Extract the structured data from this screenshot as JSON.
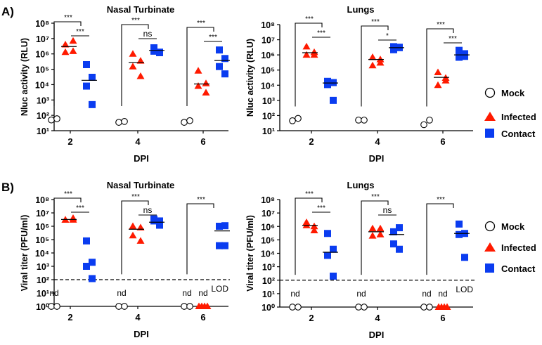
{
  "panel_labels": [
    "A)",
    "B)"
  ],
  "legend": [
    {
      "name": "Mock",
      "marker": "circle-open",
      "color": "#000000"
    },
    {
      "name": "Infected",
      "marker": "triangle",
      "color": "#ff0000"
    },
    {
      "name": "Contact",
      "marker": "square",
      "color": "#0033ff"
    }
  ],
  "chart_data": [
    {
      "type": "scatter",
      "title": "Nasal Turbinate",
      "xlabel": "DPI",
      "ylabel": "Nluc activity (RLU)",
      "yscale": "log",
      "ylim": [
        10,
        100000000
      ],
      "ytick_labels": [
        "10¹",
        "10²",
        "10³",
        "10⁴",
        "10⁵",
        "10⁶",
        "10⁷",
        "10⁸"
      ],
      "categories": [
        "2",
        "4",
        "6"
      ],
      "series": [
        {
          "name": "Mock",
          "values": [
            [
              50,
              60
            ],
            [
              35,
              40
            ],
            [
              35,
              45
            ]
          ],
          "means": [
            null,
            null,
            null
          ]
        },
        {
          "name": "Infected",
          "values": [
            [
              4000000,
              7000000,
              1300000,
              1500000
            ],
            [
              1000000,
              350000,
              150000,
              35000
            ],
            [
              80000,
              12000,
              8000,
              3000
            ]
          ],
          "means": [
            3000000,
            280000,
            11000
          ]
        },
        {
          "name": "Contact",
          "values": [
            [
              200000,
              30000,
              8000,
              500
            ],
            [
              2500000,
              1200000,
              1500000,
              1300000
            ],
            [
              1800000,
              500000,
              150000,
              50000
            ]
          ],
          "means": [
            19000,
            1700000,
            370000
          ]
        }
      ],
      "comparisons": [
        {
          "day": "2",
          "pair": [
            "Mock",
            "Contact"
          ],
          "label": "***"
        },
        {
          "day": "2",
          "pair": [
            "Infected",
            "Contact"
          ],
          "label": "***"
        },
        {
          "day": "4",
          "pair": [
            "Mock",
            "Contact"
          ],
          "label": "***"
        },
        {
          "day": "4",
          "pair": [
            "Infected",
            "Contact"
          ],
          "label": "ns"
        },
        {
          "day": "6",
          "pair": [
            "Mock",
            "Contact"
          ],
          "label": "***"
        },
        {
          "day": "6",
          "pair": [
            "Infected",
            "Contact"
          ],
          "label": "***"
        }
      ]
    },
    {
      "type": "scatter",
      "title": "Lungs",
      "xlabel": "DPI",
      "ylabel": "Nluc activity (RLU)",
      "yscale": "log",
      "ylim": [
        10,
        100000000
      ],
      "ytick_labels": [
        "10¹",
        "10²",
        "10³",
        "10⁴",
        "10⁵",
        "10⁶",
        "10⁷",
        "10⁸"
      ],
      "categories": [
        "2",
        "4",
        "6"
      ],
      "series": [
        {
          "name": "Mock",
          "values": [
            [
              45,
              65
            ],
            [
              50,
              50
            ],
            [
              25,
              50
            ]
          ],
          "means": [
            null,
            null,
            null
          ]
        },
        {
          "name": "Infected",
          "values": [
            [
              3500000,
              1500000,
              1000000,
              1000000
            ],
            [
              700000,
              500000,
              200000,
              300000
            ],
            [
              70000,
              30000,
              10000,
              20000
            ]
          ],
          "means": [
            1400000,
            500000,
            33000
          ]
        },
        {
          "name": "Contact",
          "values": [
            [
              18000,
              15000,
              11000,
              1000
            ],
            [
              2200000,
              3000000,
              3500000,
              3200000
            ],
            [
              2000000,
              1200000,
              700000,
              800000
            ]
          ],
          "means": [
            14000,
            3000000,
            1000000
          ]
        }
      ],
      "comparisons": [
        {
          "day": "2",
          "pair": [
            "Mock",
            "Contact"
          ],
          "label": "***"
        },
        {
          "day": "2",
          "pair": [
            "Infected",
            "Contact"
          ],
          "label": "***"
        },
        {
          "day": "4",
          "pair": [
            "Mock",
            "Contact"
          ],
          "label": "***"
        },
        {
          "day": "4",
          "pair": [
            "Infected",
            "Contact"
          ],
          "label": "*"
        },
        {
          "day": "6",
          "pair": [
            "Mock",
            "Contact"
          ],
          "label": "***"
        },
        {
          "day": "6",
          "pair": [
            "Infected",
            "Contact"
          ],
          "label": "***"
        }
      ]
    },
    {
      "type": "scatter",
      "title": "Nasal Turbinate",
      "xlabel": "DPI",
      "ylabel": "Viral titer (PFU/ml)",
      "yscale": "log",
      "ylim": [
        1,
        100000000
      ],
      "ytick_labels": [
        "10⁰",
        "10¹",
        "10²",
        "10³",
        "10⁴",
        "10⁵",
        "10⁶",
        "10⁷",
        "10⁸"
      ],
      "categories": [
        "2",
        "4",
        "6"
      ],
      "lod": {
        "value": 100,
        "label": "LOD"
      },
      "nd_label": "nd",
      "nd": [
        {
          "day": "2",
          "series": "Mock"
        },
        {
          "day": "4",
          "series": "Mock"
        },
        {
          "day": "6",
          "series": "Mock"
        },
        {
          "day": "6",
          "series": "Infected"
        }
      ],
      "series": [
        {
          "name": "Mock",
          "values": [
            [
              1,
              1
            ],
            [
              1,
              1
            ],
            [
              1,
              1
            ]
          ],
          "means": [
            null,
            null,
            null
          ]
        },
        {
          "name": "Infected",
          "values": [
            [
              3000000,
              4000000,
              3000000,
              3000000
            ],
            [
              1000000,
              800000,
              200000,
              80000
            ],
            [
              1,
              1,
              1,
              1
            ]
          ],
          "means": [
            3200000,
            600000,
            null
          ]
        },
        {
          "name": "Contact",
          "values": [
            [
              80000,
              2000,
              1000,
              120
            ],
            [
              3500000,
              1200000,
              2500000,
              2500000
            ],
            [
              1000000,
              1100000,
              35000,
              35000
            ]
          ],
          "means": [
            null,
            2000000,
            450000
          ]
        }
      ],
      "comparisons": [
        {
          "day": "2",
          "pair": [
            "Mock",
            "Contact"
          ],
          "label": "***"
        },
        {
          "day": "2",
          "pair": [
            "Infected",
            "Contact"
          ],
          "label": "***"
        },
        {
          "day": "4",
          "pair": [
            "Mock",
            "Contact"
          ],
          "label": "***"
        },
        {
          "day": "4",
          "pair": [
            "Infected",
            "Contact"
          ],
          "label": "ns"
        },
        {
          "day": "6",
          "pair": [
            "Mock",
            "Contact"
          ],
          "label": "***"
        }
      ]
    },
    {
      "type": "scatter",
      "title": "Lungs",
      "xlabel": "DPI",
      "ylabel": "Viral titer (PFU/ml)",
      "yscale": "log",
      "ylim": [
        1,
        100000000
      ],
      "ytick_labels": [
        "10⁰",
        "10¹",
        "10²",
        "10³",
        "10⁴",
        "10⁵",
        "10⁶",
        "10⁷",
        "10⁸"
      ],
      "categories": [
        "2",
        "4",
        "6"
      ],
      "lod": {
        "value": 100,
        "label": "LOD"
      },
      "nd_label": "nd",
      "nd": [
        {
          "day": "2",
          "series": "Mock"
        },
        {
          "day": "4",
          "series": "Mock"
        },
        {
          "day": "6",
          "series": "Mock"
        },
        {
          "day": "6",
          "series": "Infected"
        }
      ],
      "series": [
        {
          "name": "Mock",
          "values": [
            [
              1,
              1
            ],
            [
              1,
              1
            ],
            [
              1,
              1
            ]
          ],
          "means": [
            null,
            null,
            null
          ]
        },
        {
          "name": "Infected",
          "values": [
            [
              2000000,
              1000000,
              1200000,
              500000
            ],
            [
              700000,
              700000,
              200000,
              250000
            ],
            [
              1,
              1,
              1,
              1
            ]
          ],
          "means": [
            1200000,
            400000,
            null
          ]
        },
        {
          "name": "Contact",
          "values": [
            [
              300000,
              20000,
              7000,
              200
            ],
            [
              400000,
              800000,
              50000,
              20000
            ],
            [
              1500000,
              300000,
              250000,
              5000
            ]
          ],
          "means": [
            12000,
            250000,
            300000
          ]
        }
      ],
      "comparisons": [
        {
          "day": "2",
          "pair": [
            "Mock",
            "Contact"
          ],
          "label": "***"
        },
        {
          "day": "2",
          "pair": [
            "Infected",
            "Contact"
          ],
          "label": "***"
        },
        {
          "day": "4",
          "pair": [
            "Mock",
            "Contact"
          ],
          "label": "***"
        },
        {
          "day": "4",
          "pair": [
            "Infected",
            "Contact"
          ],
          "label": "ns"
        },
        {
          "day": "6",
          "pair": [
            "Mock",
            "Contact"
          ],
          "label": "***"
        }
      ]
    }
  ]
}
